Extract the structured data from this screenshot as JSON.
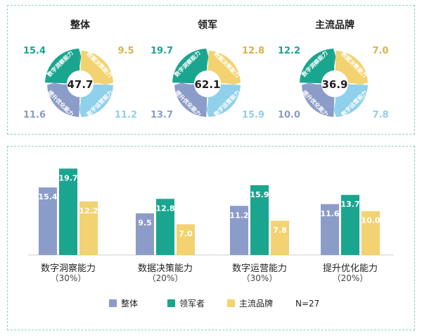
{
  "colors": {
    "overall": "#8c9cc9",
    "leader": "#1aa58f",
    "mainstream": "#f2d271",
    "insight": "#1aa58f",
    "decision": "#f2d271",
    "operation": "#8fd0ea",
    "optimization": "#8c9cc9",
    "border": "#8fcfc6"
  },
  "chart_data": [
    {
      "type": "donut",
      "charts": [
        {
          "title": "整体",
          "center": "47.7",
          "segments": [
            {
              "name": "数字洞察能力",
              "value": 15.4,
              "label": "15.4"
            },
            {
              "name": "数据决策能力",
              "value": 9.5,
              "label": "9.5"
            },
            {
              "name": "数字运营能力",
              "value": 11.2,
              "label": "11.2"
            },
            {
              "name": "提升优化能力",
              "value": 11.6,
              "label": "11.6"
            }
          ]
        },
        {
          "title": "领军",
          "center": "62.1",
          "segments": [
            {
              "name": "数字洞察能力",
              "value": 19.7,
              "label": "19.7"
            },
            {
              "name": "数据决策能力",
              "value": 12.8,
              "label": "12.8"
            },
            {
              "name": "数字运营能力",
              "value": 15.9,
              "label": "15.9"
            },
            {
              "name": "提升优化能力",
              "value": 13.7,
              "label": "13.7"
            }
          ]
        },
        {
          "title": "主流品牌",
          "center": "36.9",
          "segments": [
            {
              "name": "数字洞察能力",
              "value": 12.2,
              "label": "12.2"
            },
            {
              "name": "数据决策能力",
              "value": 7.0,
              "label": "7.0"
            },
            {
              "name": "数字运营能力",
              "value": 7.8,
              "label": "7.8"
            },
            {
              "name": "提升优化能力",
              "value": 10.0,
              "label": "10.0"
            }
          ]
        }
      ]
    },
    {
      "type": "bar",
      "categories": [
        "数字洞察能力",
        "数据决策能力",
        "数字运营能力",
        "提升优化能力"
      ],
      "category_sub": [
        "（30%）",
        "（20%）",
        "（30%）",
        "（20%）"
      ],
      "series": [
        {
          "name": "整体",
          "values": [
            15.4,
            9.5,
            11.2,
            11.6
          ],
          "labels": [
            "15.4",
            "9.5",
            "11.2",
            "11.6"
          ]
        },
        {
          "name": "领军者",
          "values": [
            19.7,
            12.8,
            15.9,
            13.7
          ],
          "labels": [
            "19.7",
            "12.8",
            "15.9",
            "13.7"
          ]
        },
        {
          "name": "主流品牌",
          "values": [
            12.2,
            7.0,
            7.8,
            10.0
          ],
          "labels": [
            "12.2",
            "7.0",
            "7.8",
            "10.0"
          ]
        }
      ],
      "ylim": [
        0,
        22
      ],
      "legend_note": "N=27",
      "legend_position": "bottom"
    }
  ]
}
